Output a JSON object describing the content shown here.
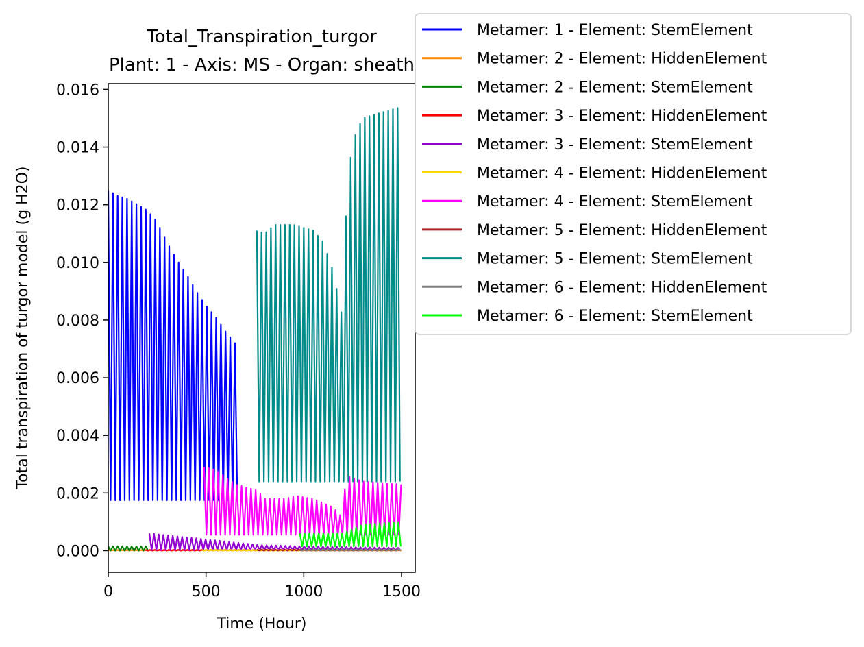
{
  "chart_data": {
    "type": "line",
    "title": "Total_Transpiration_turgor",
    "subtitle": "Plant: 1 - Axis: MS - Organ: sheath",
    "xlabel": "Time (Hour)",
    "ylabel": "Total transpiration of turgor model (g H2O)",
    "xlim": [
      0,
      1570
    ],
    "ylim": [
      -0.00075,
      0.0162
    ],
    "x_ticks": [
      "0",
      "500",
      "1000",
      "1500"
    ],
    "x_tick_values": [
      0,
      500,
      1000,
      1500
    ],
    "y_ticks": [
      "0.000",
      "0.002",
      "0.004",
      "0.006",
      "0.008",
      "0.010",
      "0.012",
      "0.014",
      "0.016"
    ],
    "y_tick_values": [
      0,
      0.002,
      0.004,
      0.006,
      0.008,
      0.01,
      0.012,
      0.014,
      0.016
    ],
    "grid": false,
    "legend_position": "outside right top",
    "series": [
      {
        "name": "Metamer: 1 - Element: StemElement",
        "color": "#0000ff",
        "x_start": 0,
        "x_end": 665,
        "period": 24,
        "base": 0.00175,
        "peaks": [
          [
            0,
            0.0125
          ],
          [
            50,
            0.0123
          ],
          [
            100,
            0.0122
          ],
          [
            150,
            0.012
          ],
          [
            200,
            0.0118
          ],
          [
            250,
            0.0114
          ],
          [
            300,
            0.0107
          ],
          [
            350,
            0.0101
          ],
          [
            400,
            0.0096
          ],
          [
            450,
            0.009
          ],
          [
            500,
            0.0085
          ],
          [
            550,
            0.0081
          ],
          [
            600,
            0.0076
          ],
          [
            660,
            0.0071
          ]
        ]
      },
      {
        "name": "Metamer: 2 - Element: HiddenElement",
        "color": "#ff8c00",
        "x_start": 0,
        "x_end": 1500,
        "period": 24,
        "base": 0.0,
        "peaks": [
          [
            0,
            2e-05
          ],
          [
            1500,
            2e-05
          ]
        ]
      },
      {
        "name": "Metamer: 2 - Element: StemElement",
        "color": "#008000",
        "x_start": 0,
        "x_end": 210,
        "period": 24,
        "base": 0.0,
        "peaks": [
          [
            0,
            0.00015
          ],
          [
            210,
            0.00015
          ]
        ]
      },
      {
        "name": "Metamer: 3 - Element: HiddenElement",
        "color": "#ff0000",
        "x_start": 190,
        "x_end": 770,
        "period": 24,
        "base": 0.0,
        "peaks": [
          [
            190,
            3e-05
          ],
          [
            770,
            3e-05
          ]
        ]
      },
      {
        "name": "Metamer: 3 - Element: StemElement",
        "color": "#9400d3",
        "x_start": 210,
        "x_end": 1500,
        "period": 24,
        "base": 2e-05,
        "peaks": [
          [
            210,
            0.0006
          ],
          [
            490,
            0.0004
          ],
          [
            770,
            0.0002
          ],
          [
            1000,
            0.00015
          ],
          [
            1500,
            0.0001
          ]
        ]
      },
      {
        "name": "Metamer: 4 - Element: HiddenElement",
        "color": "#ffd700",
        "x_start": 480,
        "x_end": 980,
        "period": 24,
        "base": 0.0,
        "peaks": [
          [
            480,
            3e-05
          ],
          [
            980,
            3e-05
          ]
        ]
      },
      {
        "name": "Metamer: 4 - Element: StemElement",
        "color": "#ff00ff",
        "x_start": 490,
        "x_end": 1500,
        "period": 24,
        "base": 0.00055,
        "peaks": [
          [
            490,
            0.0029
          ],
          [
            550,
            0.0028
          ],
          [
            650,
            0.0023
          ],
          [
            760,
            0.0021
          ],
          [
            800,
            0.0018
          ],
          [
            900,
            0.0018
          ],
          [
            960,
            0.0019
          ],
          [
            1050,
            0.0018
          ],
          [
            1150,
            0.0015
          ],
          [
            1190,
            0.0012
          ],
          [
            1220,
            0.0026
          ],
          [
            1300,
            0.0024
          ],
          [
            1500,
            0.0023
          ]
        ]
      },
      {
        "name": "Metamer: 5 - Element: HiddenElement",
        "color": "#b22222",
        "x_start": 760,
        "x_end": 1500,
        "period": 24,
        "base": 0.0,
        "peaks": [
          [
            760,
            4e-05
          ],
          [
            1500,
            4e-05
          ]
        ]
      },
      {
        "name": "Metamer: 5 - Element: StemElement",
        "color": "#008b8b",
        "x_start": 760,
        "x_end": 1500,
        "period": 24,
        "base": 0.0024,
        "peaks": [
          [
            760,
            0.0111
          ],
          [
            800,
            0.011
          ],
          [
            850,
            0.0113
          ],
          [
            950,
            0.0113
          ],
          [
            1000,
            0.0112
          ],
          [
            1050,
            0.0111
          ],
          [
            1100,
            0.0107
          ],
          [
            1150,
            0.0097
          ],
          [
            1200,
            0.008
          ],
          [
            1220,
            0.0125
          ],
          [
            1250,
            0.0142
          ],
          [
            1300,
            0.015
          ],
          [
            1400,
            0.0152
          ],
          [
            1500,
            0.0154
          ]
        ]
      },
      {
        "name": "Metamer: 6 - Element: HiddenElement",
        "color": "#808080",
        "x_start": 980,
        "x_end": 1500,
        "period": 24,
        "base": 0.0,
        "peaks": [
          [
            980,
            5e-05
          ],
          [
            1500,
            5e-05
          ]
        ]
      },
      {
        "name": "Metamer: 6 - Element: StemElement",
        "color": "#00ff00",
        "x_start": 980,
        "x_end": 1500,
        "period": 24,
        "base": 0.00015,
        "peaks": [
          [
            980,
            0.0006
          ],
          [
            1100,
            0.0006
          ],
          [
            1200,
            0.0006
          ],
          [
            1300,
            0.0009
          ],
          [
            1500,
            0.001
          ]
        ]
      }
    ]
  }
}
